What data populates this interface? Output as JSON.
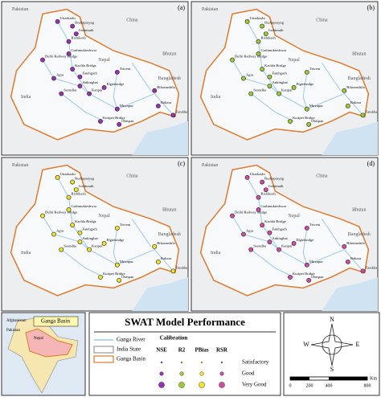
{
  "panels": [
    {
      "label": "(a)",
      "metric": "NSE",
      "color": "#9b2fb5"
    },
    {
      "label": "(b)",
      "metric": "R2",
      "color": "#9acd32"
    },
    {
      "label": "(c)",
      "metric": "PBias",
      "color": "#f2e424"
    },
    {
      "label": "(d)",
      "metric": "RSR",
      "color": "#d24aa8"
    }
  ],
  "countries": [
    "Pakistan",
    "China",
    "Nepal",
    "Bhutan",
    "Bangladesh",
    "India"
  ],
  "stations": [
    "Uttarkashi",
    "Rudraprayag",
    "Joshimath",
    "Rishikesh",
    "Delhi Railway Bridge",
    "Garhmukteshwar",
    "Kachla Bridge",
    "Agra",
    "Fatehgarh",
    "Ankinghat",
    "Kanpur",
    "Seondha",
    "Elginbridge",
    "Triveni",
    "Mirzapur",
    "Kuripet Bridge",
    "Obispan",
    "Bikramshila",
    "Baltara",
    "Farakka"
  ],
  "inset": {
    "title": "Ganga Basin",
    "labels": [
      "Afghanistan",
      "Pakistan",
      "Nepal"
    ]
  },
  "legend": {
    "title": "SWAT Model Performance",
    "items": [
      "Ganga River",
      "India State",
      "Ganga Basin"
    ],
    "calibration": "Calibration",
    "classes": [
      "Satisfactory",
      "Good",
      "Very Good"
    ]
  },
  "compass": [
    "N",
    "E",
    "S",
    "W"
  ],
  "scale": {
    "ticks": [
      "0",
      "200",
      "400",
      "800"
    ],
    "unit": "Km"
  }
}
